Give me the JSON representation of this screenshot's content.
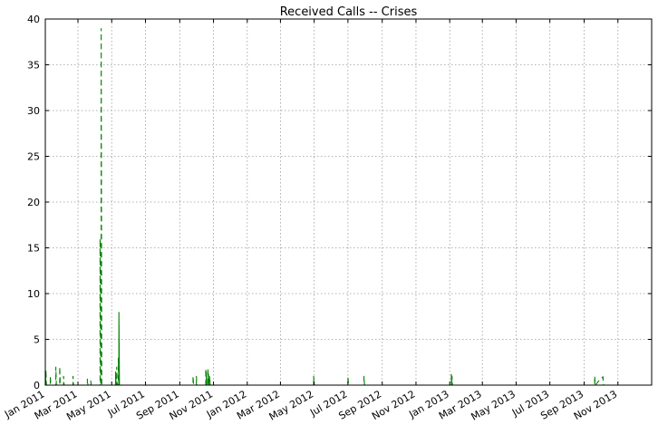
{
  "chart_data": {
    "type": "line",
    "title": "Received Calls -- Crises",
    "xlabel": "",
    "ylabel": "",
    "x_axis": {
      "type": "date",
      "range": [
        "2011-01-01",
        "2014-01-01"
      ],
      "tick_labels": [
        "Jan 2011",
        "Mar 2011",
        "May 2011",
        "Jul 2011",
        "Sep 2011",
        "Nov 2011",
        "Jan 2012",
        "Mar 2012",
        "May 2012",
        "Jul 2012",
        "Sep 2012",
        "Nov 2012",
        "Jan 2013",
        "Mar 2013",
        "May 2013",
        "Jul 2013",
        "Sep 2013",
        "Nov 2013"
      ],
      "tick_dates": [
        "2011-01-01",
        "2011-03-01",
        "2011-05-01",
        "2011-07-01",
        "2011-09-01",
        "2011-11-01",
        "2012-01-01",
        "2012-03-01",
        "2012-05-01",
        "2012-07-01",
        "2012-09-01",
        "2012-11-01",
        "2013-01-01",
        "2013-03-01",
        "2013-05-01",
        "2013-07-01",
        "2013-09-01",
        "2013-11-01"
      ]
    },
    "y_axis": {
      "range": [
        0,
        40
      ],
      "ticks": [
        0,
        5,
        10,
        15,
        20,
        25,
        30,
        35,
        40
      ]
    },
    "grid": true,
    "series": [
      {
        "style": "dashed",
        "color": "#008000",
        "points": [
          [
            "2011-01-02",
            0
          ],
          [
            "2011-01-02",
            1.7
          ],
          [
            "2011-01-03",
            0
          ],
          [
            "2011-01-10",
            0
          ],
          [
            "2011-01-10",
            1
          ],
          [
            "2011-01-11",
            0
          ],
          [
            "2011-01-20",
            0
          ],
          [
            "2011-01-20",
            2
          ],
          [
            "2011-01-21",
            0
          ],
          [
            "2011-01-27",
            0
          ],
          [
            "2011-01-27",
            2
          ],
          [
            "2011-01-28",
            0
          ],
          [
            "2011-02-03",
            0
          ],
          [
            "2011-02-03",
            1
          ],
          [
            "2011-02-04",
            0
          ],
          [
            "2011-02-20",
            0
          ],
          [
            "2011-02-20",
            1
          ],
          [
            "2011-02-21",
            0
          ],
          [
            "2011-03-18",
            0
          ],
          [
            "2011-03-18",
            0.7
          ],
          [
            "2011-03-19",
            0
          ],
          [
            "2011-03-24",
            0
          ],
          [
            "2011-03-24",
            0.5
          ],
          [
            "2011-03-25",
            0
          ],
          [
            "2011-04-10",
            0
          ],
          [
            "2011-04-10",
            16
          ],
          [
            "2011-04-11",
            0
          ],
          [
            "2011-04-12",
            0
          ],
          [
            "2011-04-12",
            39
          ],
          [
            "2011-04-13",
            0
          ],
          [
            "2011-05-10",
            0
          ],
          [
            "2011-05-10",
            2
          ],
          [
            "2011-05-11",
            0
          ],
          [
            "2011-05-13",
            0
          ],
          [
            "2011-05-13",
            3
          ],
          [
            "2011-05-14",
            0
          ],
          [
            "2011-09-25",
            0
          ],
          [
            "2011-09-25",
            1
          ],
          [
            "2011-09-26",
            0
          ],
          [
            "2011-10-01",
            0
          ],
          [
            "2011-10-01",
            1
          ],
          [
            "2011-10-02",
            0
          ],
          [
            "2011-10-18",
            0
          ],
          [
            "2011-10-18",
            1.8
          ],
          [
            "2011-10-19",
            0
          ],
          [
            "2011-10-22",
            0
          ],
          [
            "2011-10-22",
            1.8
          ],
          [
            "2011-10-23",
            0
          ],
          [
            "2011-10-25",
            0
          ],
          [
            "2011-10-25",
            1
          ],
          [
            "2011-10-26",
            0
          ],
          [
            "2012-04-30",
            0
          ],
          [
            "2012-04-30",
            1
          ],
          [
            "2012-05-01",
            0
          ],
          [
            "2012-07-01",
            0
          ],
          [
            "2012-07-01",
            1
          ],
          [
            "2012-07-02",
            0
          ],
          [
            "2012-07-30",
            0
          ],
          [
            "2012-07-30",
            1
          ],
          [
            "2012-07-31",
            0
          ],
          [
            "2013-01-05",
            0
          ],
          [
            "2013-01-05",
            1
          ],
          [
            "2013-01-06",
            0
          ],
          [
            "2013-09-20",
            0
          ],
          [
            "2013-09-20",
            1
          ],
          [
            "2013-09-21",
            0
          ],
          [
            "2013-09-28",
            0.5
          ],
          [
            "2013-10-05",
            0.9
          ],
          [
            "2013-10-06",
            0
          ],
          [
            "2013-12-31",
            0
          ]
        ]
      },
      {
        "style": "solid",
        "color": "#008000",
        "points": [
          [
            "2011-01-01",
            0
          ],
          [
            "2011-01-01",
            1.5
          ],
          [
            "2011-01-02",
            0
          ],
          [
            "2011-05-08",
            0
          ],
          [
            "2011-05-08",
            1.5
          ],
          [
            "2011-05-09",
            0
          ],
          [
            "2011-05-14",
            0
          ],
          [
            "2011-05-14",
            8
          ],
          [
            "2011-05-15",
            0
          ],
          [
            "2011-10-19",
            0
          ],
          [
            "2011-10-19",
            1.5
          ],
          [
            "2011-10-20",
            0
          ],
          [
            "2011-10-23",
            0
          ],
          [
            "2011-10-23",
            1.2
          ],
          [
            "2011-10-24",
            0
          ],
          [
            "2013-01-04",
            0
          ],
          [
            "2013-01-04",
            1.2
          ],
          [
            "2013-01-05",
            0
          ],
          [
            "2013-12-31",
            0
          ]
        ]
      }
    ]
  }
}
